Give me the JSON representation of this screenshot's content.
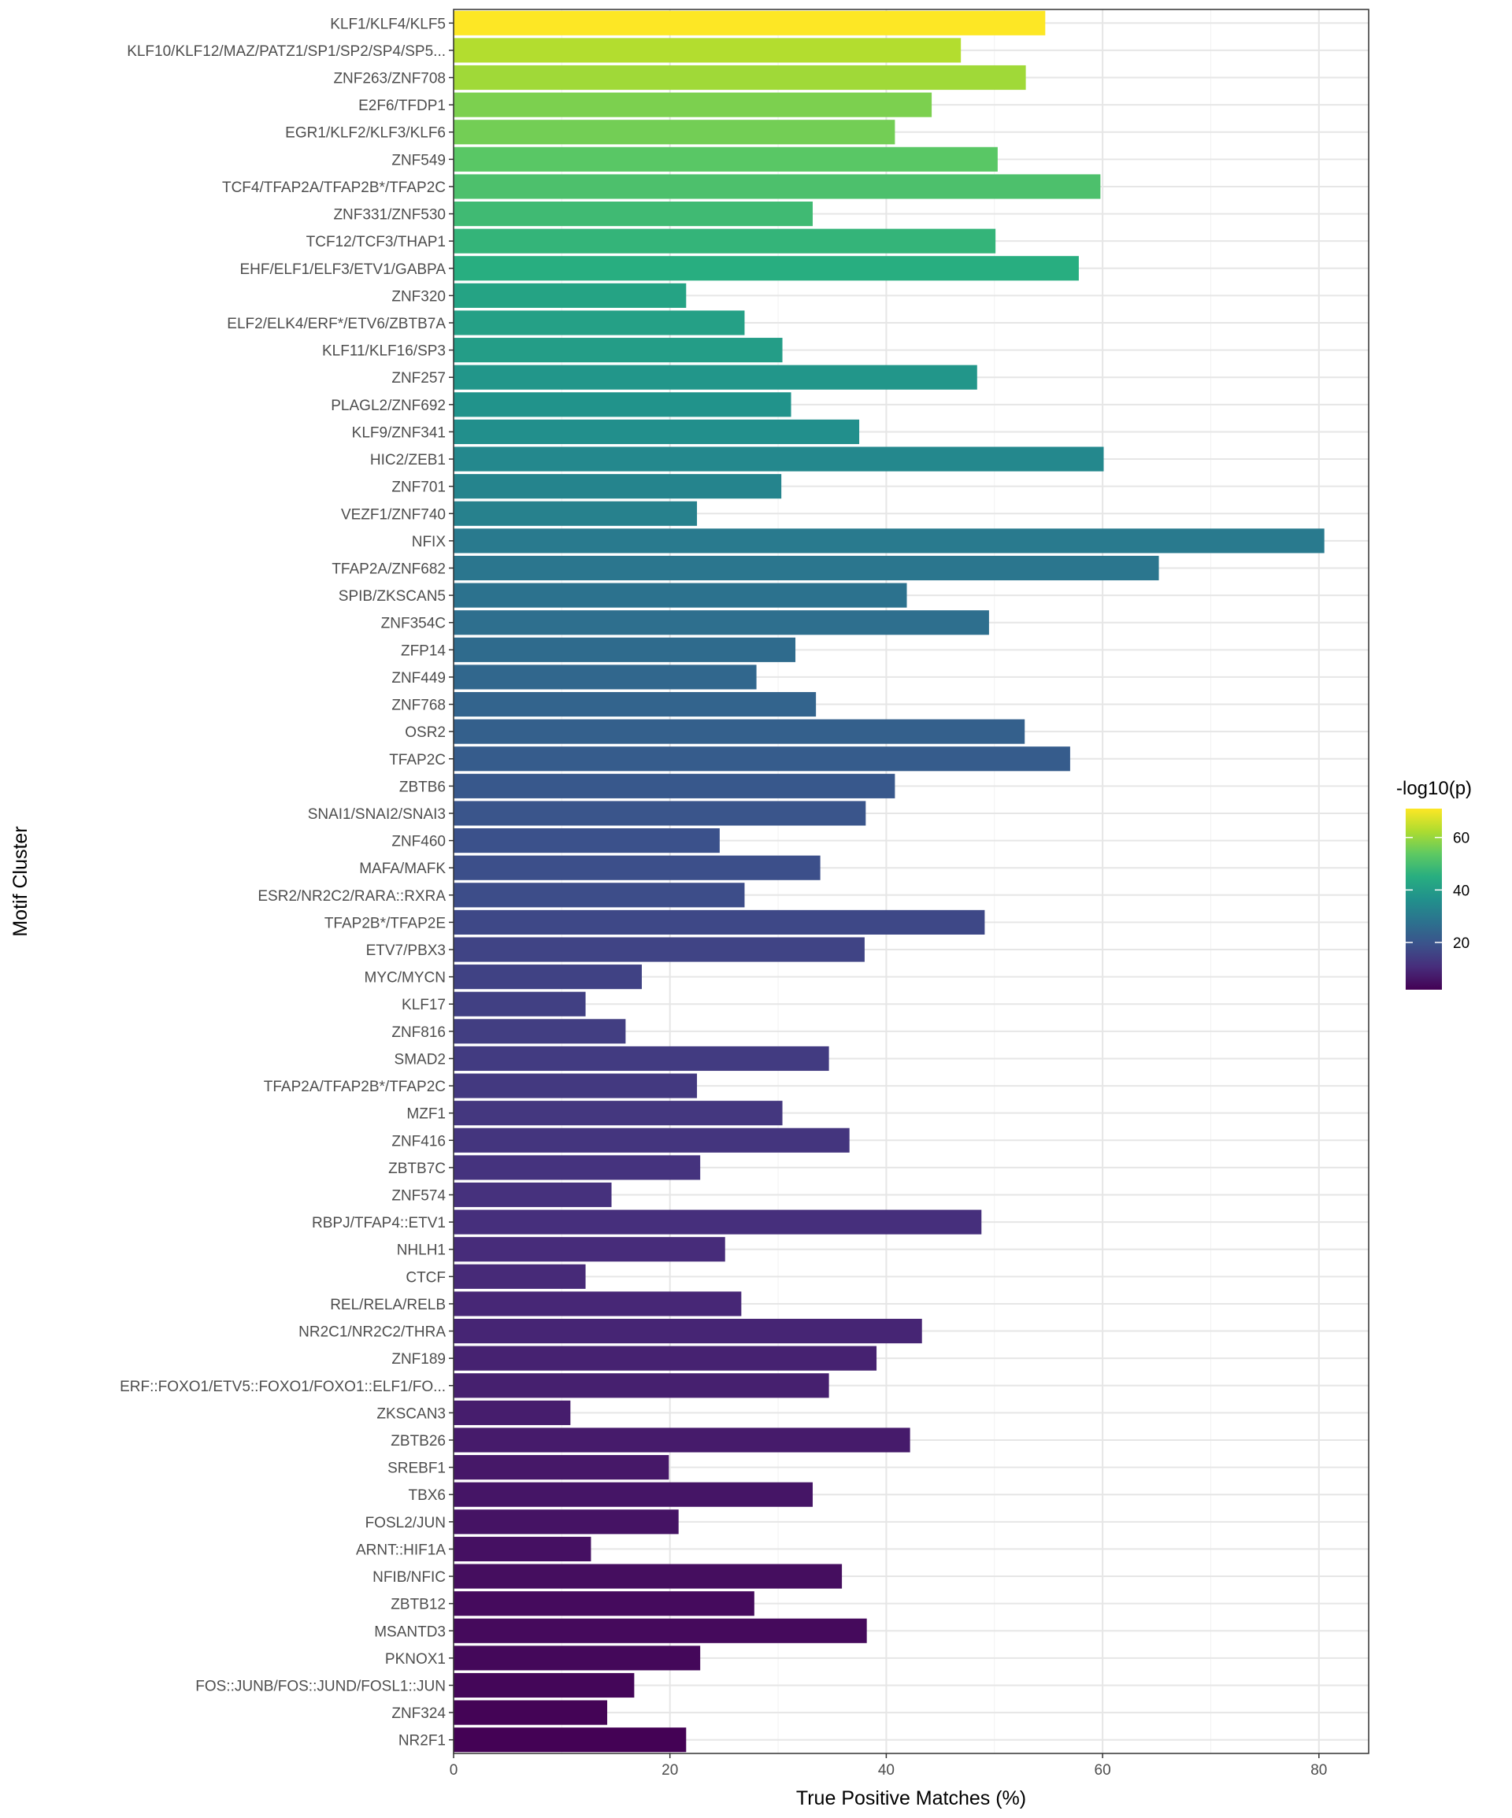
{
  "chart_data": {
    "type": "bar",
    "orientation": "horizontal",
    "xlabel": "True Positive Matches (%)",
    "ylabel": "Motif Cluster",
    "xlim": [
      0,
      84.6
    ],
    "xticks": [
      0,
      20,
      40,
      60,
      80
    ],
    "grid": true,
    "legend": {
      "title": "-log10(p)",
      "placement": "right",
      "colormap": "viridis",
      "range": [
        2,
        71
      ],
      "ticks": [
        20,
        40,
        60
      ]
    },
    "categories": [
      "KLF1/KLF4/KLF5",
      "KLF10/KLF12/MAZ/PATZ1/SP1/SP2/SP4/SP5...",
      "ZNF263/ZNF708",
      "E2F6/TFDP1",
      "EGR1/KLF2/KLF3/KLF6",
      "ZNF549",
      "TCF4/TFAP2A/TFAP2B*/TFAP2C",
      "ZNF331/ZNF530",
      "TCF12/TCF3/THAP1",
      "EHF/ELF1/ELF3/ETV1/GABPA",
      "ZNF320",
      "ELF2/ELK4/ERF*/ETV6/ZBTB7A",
      "KLF11/KLF16/SP3",
      "ZNF257",
      "PLAGL2/ZNF692",
      "KLF9/ZNF341",
      "HIC2/ZEB1",
      "ZNF701",
      "VEZF1/ZNF740",
      "NFIX",
      "TFAP2A/ZNF682",
      "SPIB/ZKSCAN5",
      "ZNF354C",
      "ZFP14",
      "ZNF449",
      "ZNF768",
      "OSR2",
      "TFAP2C",
      "ZBTB6",
      "SNAI1/SNAI2/SNAI3",
      "ZNF460",
      "MAFA/MAFK",
      "ESR2/NR2C2/RARA::RXRA",
      "TFAP2B*/TFAP2E",
      "ETV7/PBX3",
      "MYC/MYCN",
      "KLF17",
      "ZNF816",
      "SMAD2",
      "TFAP2A/TFAP2B*/TFAP2C",
      "MZF1",
      "ZNF416",
      "ZBTB7C",
      "ZNF574",
      "RBPJ/TFAP4::ETV1",
      "NHLH1",
      "CTCF",
      "REL/RELA/RELB",
      "NR2C1/NR2C2/THRA",
      "ZNF189",
      "ERF::FOXO1/ETV5::FOXO1/FOXO1::ELF1/FO...",
      "ZKSCAN3",
      "ZBTB26",
      "SREBF1",
      "TBX6",
      "FOSL2/JUN",
      "ARNT::HIF1A",
      "NFIB/NFIC",
      "ZBTB12",
      "MSANTD3",
      "PKNOX1",
      "FOS::JUNB/FOS::JUND/FOSL1::JUN",
      "ZNF324",
      "NR2F1"
    ],
    "values": [
      54.7,
      46.9,
      52.9,
      44.2,
      40.8,
      50.3,
      59.8,
      33.2,
      50.1,
      57.8,
      21.5,
      26.9,
      30.4,
      48.4,
      31.2,
      37.5,
      60.1,
      30.3,
      22.5,
      80.5,
      65.2,
      41.9,
      49.5,
      31.6,
      28.0,
      33.5,
      52.8,
      57.0,
      40.8,
      38.1,
      24.6,
      33.9,
      26.9,
      49.1,
      38.0,
      17.4,
      12.2,
      15.9,
      34.7,
      22.5,
      30.4,
      36.6,
      22.8,
      14.6,
      48.8,
      25.1,
      12.2,
      26.6,
      43.3,
      39.1,
      34.7,
      10.8,
      42.2,
      19.9,
      33.2,
      20.8,
      12.7,
      35.9,
      27.8,
      38.2,
      22.8,
      16.7,
      14.2,
      21.5
    ],
    "neglog10p": [
      71,
      63,
      61,
      57,
      56,
      53,
      51,
      49,
      47,
      45,
      42,
      41,
      40,
      38,
      37,
      36,
      34,
      33,
      32,
      30,
      29,
      28,
      27,
      26,
      25,
      24,
      23,
      22,
      21,
      20,
      19,
      18.5,
      18,
      17,
      16,
      15.5,
      15,
      14.5,
      14,
      13.5,
      13,
      12.5,
      12,
      11.5,
      11,
      10.5,
      10,
      9.5,
      9,
      8.5,
      8,
      7.5,
      7,
      6.5,
      6,
      5.5,
      5,
      4.5,
      4,
      3.7,
      3.3,
      3,
      2.5,
      2.2
    ]
  }
}
